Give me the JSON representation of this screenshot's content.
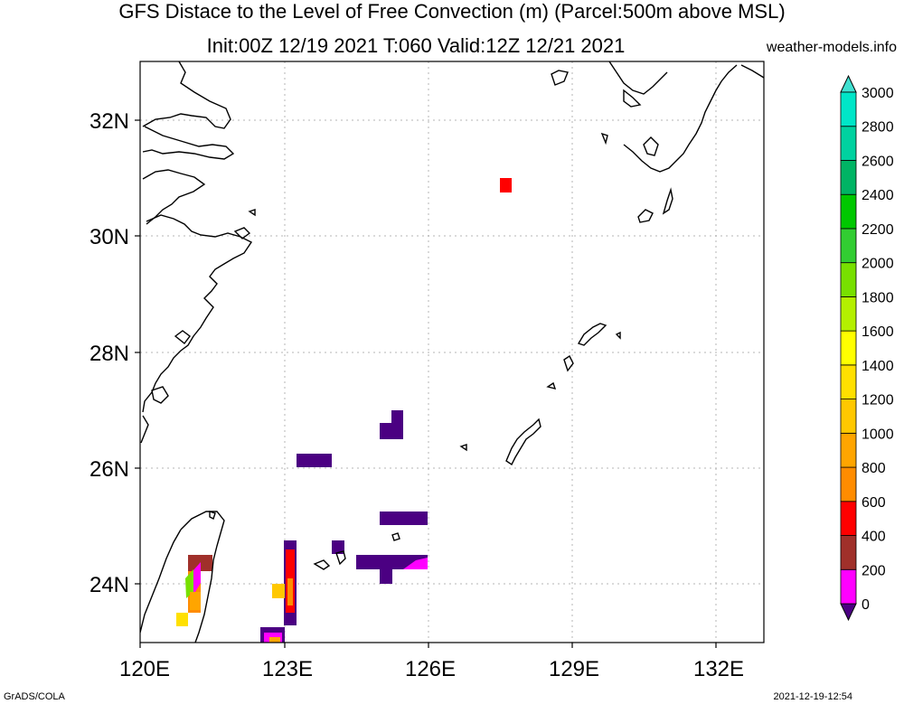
{
  "header": {
    "title_line1": "GFS Distace to the Level of Free Convection (m) (Parcel:500m above MSL)",
    "title_line2": "Init:00Z 12/19 2021 T:060 Valid:12Z 12/21 2021",
    "credit": "weather-models.info"
  },
  "footer": {
    "left": "GrADS/COLA",
    "right": "2021-12-19-12:54"
  },
  "map": {
    "lon_range": [
      120,
      133
    ],
    "lat_range": [
      23,
      33
    ],
    "lon_ticks": [
      "120E",
      "123E",
      "126E",
      "129E",
      "132E"
    ],
    "lat_ticks": [
      "24N",
      "26N",
      "28N",
      "30N",
      "32N"
    ],
    "gridlines": true
  },
  "colorbar": {
    "labels": [
      "0",
      "200",
      "400",
      "600",
      "800",
      "1000",
      "1200",
      "1400",
      "1600",
      "1800",
      "2000",
      "2200",
      "2400",
      "2600",
      "2800",
      "3000"
    ],
    "colors": [
      "#4b0082",
      "#ff00ff",
      "#a0302a",
      "#ff0000",
      "#ff8c00",
      "#ffa500",
      "#ffc800",
      "#ffe000",
      "#ffff00",
      "#b4f000",
      "#78e000",
      "#32cd32",
      "#00c800",
      "#00b464",
      "#00d2a0",
      "#00e6c8",
      "#40e0d0"
    ]
  }
}
